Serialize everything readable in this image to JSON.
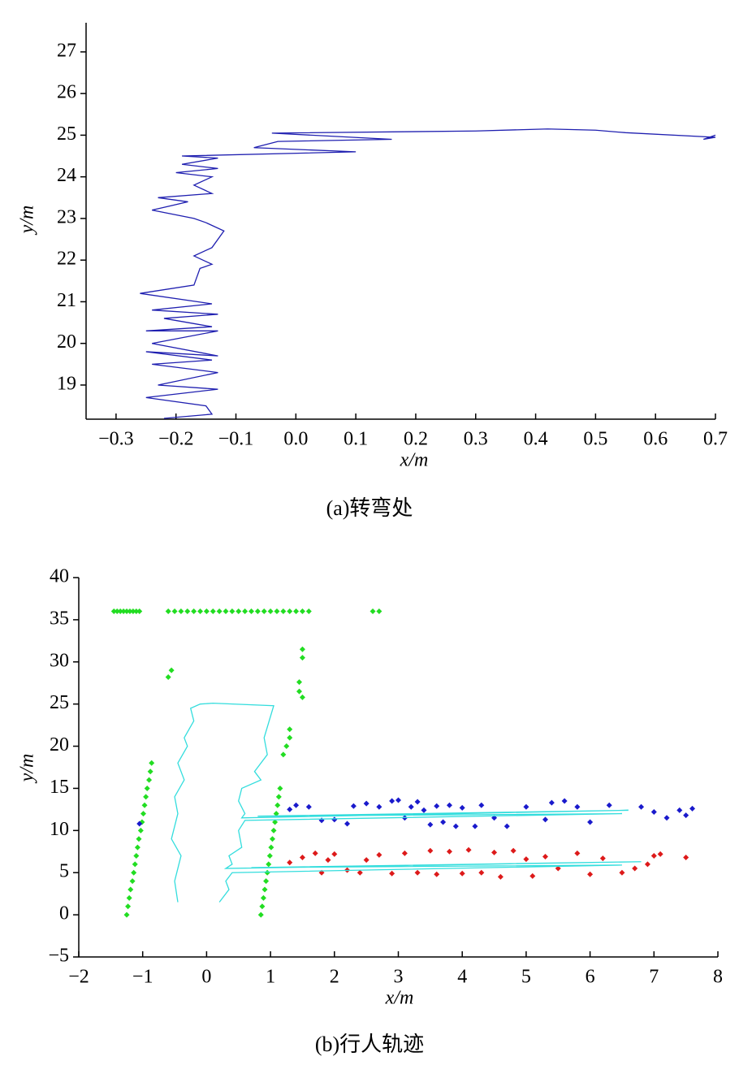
{
  "chart_data": [
    {
      "type": "line",
      "caption": "(a)转弯处",
      "x_label": "x/m",
      "y_label": "y/m",
      "xlim": [
        -0.35,
        0.7
      ],
      "ylim": [
        18.18,
        27.7
      ],
      "xticks": [
        {
          "value": -0.3,
          "label": "−0.3"
        },
        {
          "value": -0.2,
          "label": "−0.2"
        },
        {
          "value": -0.1,
          "label": "−0.1"
        },
        {
          "value": 0,
          "label": "0.0"
        },
        0.1,
        0.2,
        0.3,
        0.4,
        0.5,
        0.6,
        0.7
      ],
      "yticks": [
        19,
        20,
        21,
        22,
        23,
        24,
        25,
        26,
        27
      ],
      "series": [
        {
          "color": "#1f1fb0",
          "style": "line",
          "x": [
            -0.22,
            -0.14,
            -0.15,
            -0.25,
            -0.13,
            -0.23,
            -0.13,
            -0.24,
            -0.14,
            -0.25,
            -0.13,
            -0.24,
            -0.13,
            -0.25,
            -0.14,
            -0.22,
            -0.13,
            -0.24,
            -0.14,
            -0.26,
            -0.17,
            -0.16,
            -0.14,
            -0.17,
            -0.14,
            -0.12,
            -0.15,
            -0.17,
            -0.24,
            -0.18,
            -0.23,
            -0.14,
            -0.17,
            -0.14,
            -0.2,
            -0.13,
            -0.19,
            -0.13,
            -0.19,
            0.1,
            -0.07,
            -0.03,
            0.16,
            -0.04,
            0.3,
            0.42,
            0.5,
            0.55,
            0.7,
            0.68,
            0.7
          ],
          "values": [
            18.2,
            18.3,
            18.5,
            18.7,
            18.9,
            19.0,
            19.3,
            19.5,
            19.6,
            19.8,
            19.7,
            20.0,
            20.3,
            20.3,
            20.4,
            20.6,
            20.7,
            20.8,
            20.95,
            21.2,
            21.4,
            21.8,
            21.9,
            22.1,
            22.3,
            22.7,
            22.9,
            23.0,
            23.2,
            23.4,
            23.5,
            23.6,
            23.8,
            24.0,
            24.1,
            24.2,
            24.3,
            24.45,
            24.5,
            24.6,
            24.7,
            24.85,
            24.9,
            25.05,
            25.1,
            25.15,
            25.12,
            25.06,
            24.95,
            24.9,
            25.0
          ]
        }
      ]
    },
    {
      "type": "scatter",
      "caption": "(b)行人轨迹",
      "x_label": "x/m",
      "y_label": "y/m",
      "xlim": [
        -2,
        8
      ],
      "ylim": [
        -5,
        40
      ],
      "xticks": [
        {
          "value": -2,
          "label": "−2"
        },
        {
          "value": -1,
          "label": "−1"
        },
        0,
        1,
        2,
        3,
        4,
        5,
        6,
        7,
        8
      ],
      "yticks": [
        {
          "value": -5,
          "label": "−5"
        },
        0,
        5,
        10,
        15,
        20,
        25,
        30,
        35,
        40
      ],
      "series": [
        {
          "color": "#22dd22",
          "style": "points",
          "x": [
            -1.45,
            -1.4,
            -1.35,
            -1.3,
            -1.25,
            -1.2,
            -1.15,
            -1.1,
            -1.05,
            -0.6,
            -0.5,
            -0.4,
            -0.3,
            -0.2,
            -0.1,
            0,
            0.1,
            0.2,
            0.3,
            0.4,
            0.5,
            0.6,
            0.7,
            0.8,
            0.9,
            1.0,
            1.1,
            1.2,
            1.3,
            1.4,
            1.5,
            1.6,
            2.6,
            2.7,
            -0.6,
            -0.55,
            1.5,
            1.5,
            1.45,
            1.45,
            1.5,
            1.3,
            1.3,
            1.25,
            1.2,
            -1.25,
            -1.23,
            -1.21,
            -1.19,
            -1.16,
            -1.14,
            -1.12,
            -1.1,
            -1.08,
            -1.06,
            -1.03,
            -1.01,
            -0.99,
            -0.97,
            -0.95,
            -0.93,
            -0.9,
            -0.88,
            -0.86,
            0.85,
            0.87,
            0.89,
            0.91,
            0.93,
            0.95,
            0.97,
            0.99,
            1.01,
            1.03,
            1.05,
            1.07,
            1.09,
            1.11,
            1.13,
            1.15
          ],
          "values": [
            36,
            36,
            36,
            36,
            36,
            36,
            36,
            36,
            36,
            36,
            36,
            36,
            36,
            36,
            36,
            36,
            36,
            36,
            36,
            36,
            36,
            36,
            36,
            36,
            36,
            36,
            36,
            36,
            36,
            36,
            36,
            36,
            36,
            36,
            28.2,
            29,
            31.5,
            30.5,
            27.6,
            26.5,
            25.8,
            22,
            21,
            20,
            19,
            0,
            1,
            2,
            3,
            4,
            5,
            6,
            7,
            8,
            9,
            10,
            11,
            12,
            13,
            14,
            15,
            16,
            17,
            18,
            0,
            1,
            2,
            3,
            4,
            5,
            6,
            7,
            8,
            9,
            10,
            11,
            12,
            13,
            14,
            15
          ]
        },
        {
          "color": "#1a1acc",
          "style": "points",
          "x": [
            -1.05,
            1.3,
            1.4,
            1.6,
            1.8,
            2.3,
            2.5,
            2.7,
            2.9,
            3.0,
            3.2,
            3.3,
            3.5,
            3.6,
            3.7,
            3.8,
            3.9,
            4.0,
            4.2,
            4.3,
            4.5,
            4.7,
            5.0,
            5.3,
            5.4,
            5.6,
            5.8,
            6.0,
            6.3,
            6.8,
            7.0,
            7.2,
            7.4,
            7.5,
            7.6,
            2.0,
            2.2,
            3.1,
            3.4
          ],
          "values": [
            10.8,
            12.5,
            13.0,
            12.8,
            11.2,
            12.9,
            13.2,
            12.8,
            13.5,
            13.6,
            12.8,
            13.4,
            10.7,
            12.9,
            11.0,
            13.0,
            10.5,
            12.7,
            10.5,
            13.0,
            11.5,
            10.5,
            12.8,
            11.3,
            13.3,
            13.5,
            12.8,
            11.0,
            13.0,
            12.8,
            12.2,
            11.5,
            12.4,
            11.8,
            12.6,
            11.3,
            10.8,
            11.5,
            12.4
          ]
        },
        {
          "color": "#dd1a1a",
          "style": "points",
          "x": [
            1.3,
            1.5,
            1.7,
            1.8,
            1.9,
            2.0,
            2.2,
            2.4,
            2.5,
            2.7,
            2.9,
            3.1,
            3.3,
            3.5,
            3.6,
            3.8,
            4.0,
            4.1,
            4.3,
            4.5,
            4.6,
            4.8,
            5.0,
            5.1,
            5.3,
            5.5,
            5.8,
            6.0,
            6.2,
            6.5,
            6.7,
            6.9,
            7.0,
            7.1,
            7.5
          ],
          "values": [
            6.2,
            6.8,
            7.3,
            5.0,
            6.5,
            7.2,
            5.3,
            5.0,
            6.5,
            7.1,
            4.9,
            7.3,
            5.0,
            7.6,
            4.8,
            7.5,
            4.9,
            7.7,
            5.0,
            7.4,
            4.5,
            7.6,
            6.6,
            4.6,
            6.9,
            5.5,
            7.3,
            4.8,
            6.7,
            5.0,
            5.5,
            6.0,
            7.0,
            7.2,
            6.8
          ]
        },
        {
          "color": "#33dddd",
          "style": "line",
          "x": [
            -0.45,
            -0.5,
            -0.4,
            -0.55,
            -0.45,
            -0.5,
            -0.35,
            -0.45,
            -0.3,
            -0.35,
            -0.2,
            -0.25,
            -0.1,
            0.1,
            1.05,
            0.9,
            0.95,
            0.75,
            0.85,
            0.55,
            0.5,
            0.6,
            0.55,
            6.6,
            0.8,
            6.5,
            0.6,
            0.5,
            0.55,
            0.35,
            0.4,
            0.3,
            6.8,
            0.7,
            6.5,
            0.4,
            0.3,
            0.35,
            0.25,
            0.2
          ],
          "values": [
            1.5,
            4,
            7,
            9,
            12,
            14,
            16,
            18,
            20,
            21,
            23,
            24.5,
            25,
            25.1,
            24.8,
            21,
            19,
            17,
            16,
            15,
            13.5,
            12,
            11.5,
            12.4,
            11.7,
            12.0,
            11.2,
            10,
            8,
            7,
            6,
            5.5,
            6.3,
            5.6,
            5.9,
            5.0,
            4,
            3,
            2,
            1.5
          ]
        }
      ]
    }
  ]
}
